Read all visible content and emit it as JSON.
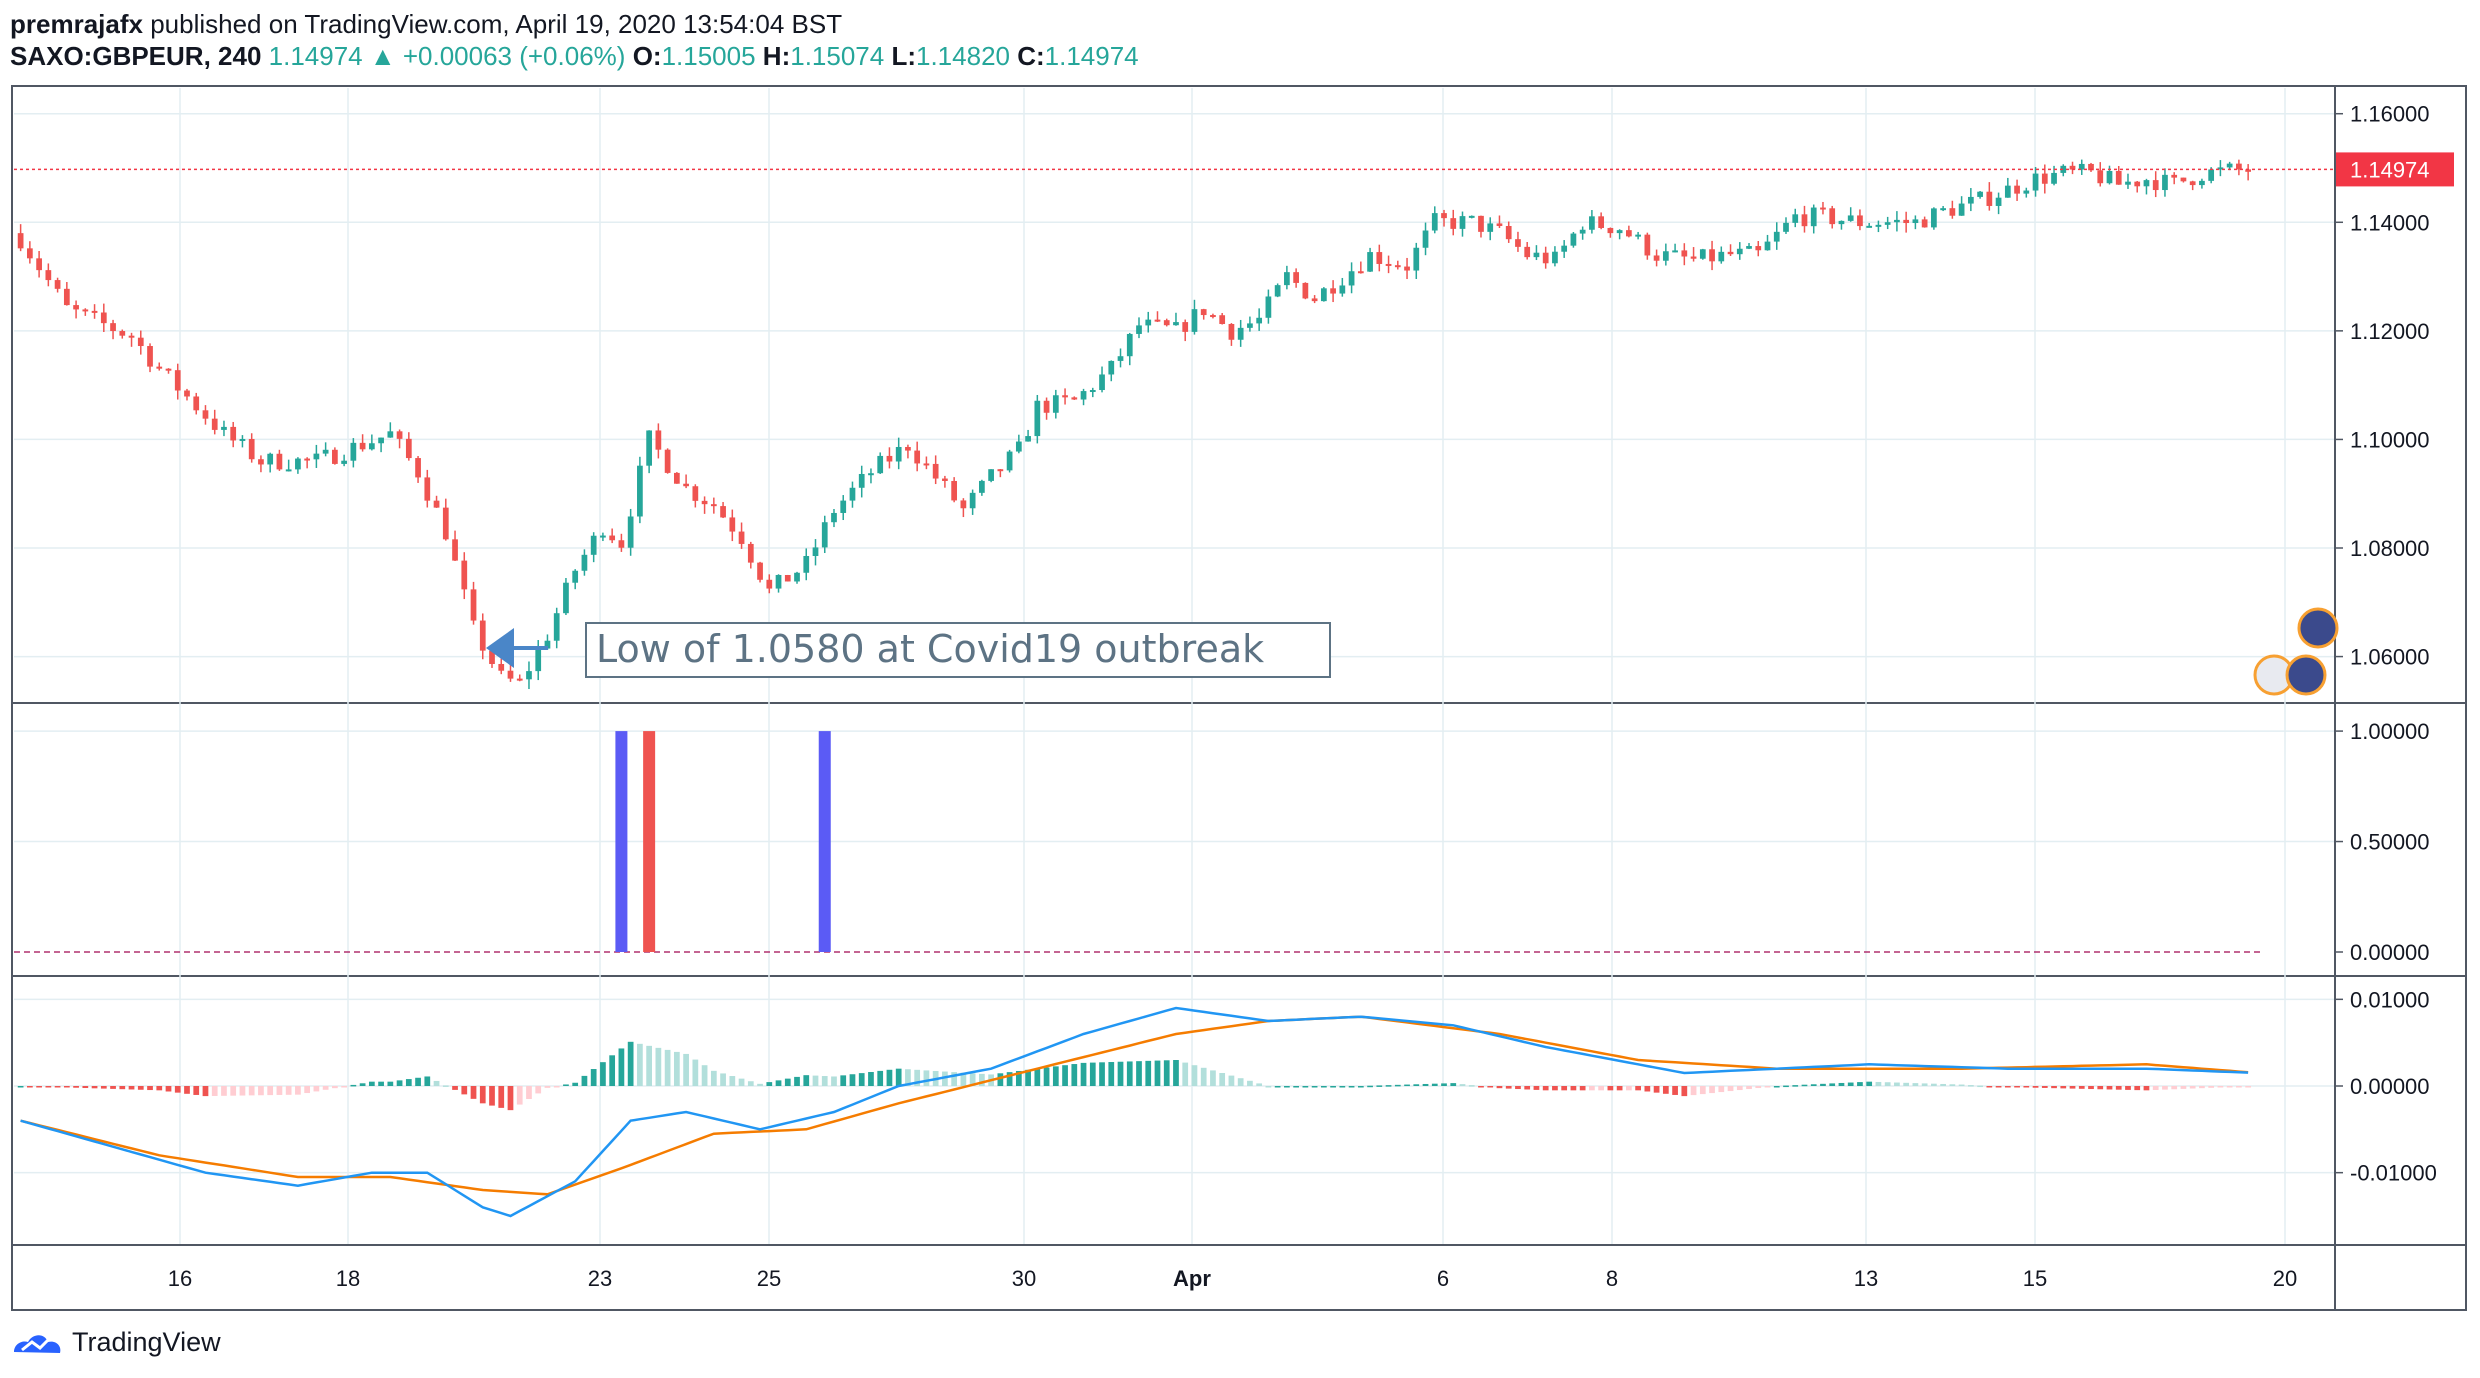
{
  "header": {
    "author": "premrajafx",
    "published_text": "published on TradingView.com, April 19, 2020 13:54:04 BST",
    "symbol": "SAXO:GBPEUR, 240",
    "last_price": "1.14974",
    "up_arrow": "▲",
    "change": "+0.00063 (+0.06%)",
    "o_label": "O:",
    "o_value": "1.15005",
    "h_label": "H:",
    "h_value": "1.15074",
    "l_label": "L:",
    "l_value": "1.14820",
    "c_label": "C:",
    "c_value": "1.14974"
  },
  "footer": {
    "brand": "TradingView"
  },
  "colors": {
    "up": "#26a69a",
    "down": "#ef5350",
    "grid": "#e3eef2",
    "price_line": "#f23645",
    "macd_line": "#2196f3",
    "signal_line": "#f57c00",
    "hist_up_strong": "#26a69a",
    "hist_up_weak": "#b2dfdb",
    "hist_down_strong": "#ef5350",
    "hist_down_weak": "#ffcdd2",
    "bar_blue": "#5b5bf5",
    "bar_red": "#ef5350",
    "annotation": "#5d7384",
    "arrow": "#4a86c8"
  },
  "chart_data": [
    {
      "type": "candlestick",
      "symbol": "SAXO:GBPEUR",
      "interval": "240",
      "ylim": [
        1.052,
        1.164
      ],
      "y_ticks": [
        "1.16000",
        "1.14000",
        "1.12000",
        "1.10000",
        "1.08000",
        "1.06000"
      ],
      "x_ticks": [
        "16",
        "18",
        "23",
        "25",
        "30",
        "Apr",
        "6",
        "8",
        "13",
        "15",
        "20"
      ],
      "current_price_label": "1.14974",
      "annotation": "Low of 1.0580 at Covid19 outbreak",
      "close_path": [
        [
          0,
          1.137
        ],
        [
          5,
          1.124
        ],
        [
          12,
          1.119
        ],
        [
          15,
          1.113
        ],
        [
          22,
          1.101
        ],
        [
          26,
          1.096
        ],
        [
          32,
          1.096
        ],
        [
          40,
          1.101
        ],
        [
          43,
          1.094
        ],
        [
          46,
          1.083
        ],
        [
          49,
          1.065
        ],
        [
          52,
          1.056
        ],
        [
          54,
          1.055
        ],
        [
          57,
          1.064
        ],
        [
          60,
          1.076
        ],
        [
          63,
          1.084
        ],
        [
          65,
          1.081
        ],
        [
          68,
          1.1
        ],
        [
          72,
          1.091
        ],
        [
          75,
          1.088
        ],
        [
          78,
          1.082
        ],
        [
          81,
          1.072
        ],
        [
          85,
          1.077
        ],
        [
          88,
          1.087
        ],
        [
          92,
          1.094
        ],
        [
          96,
          1.099
        ],
        [
          99,
          1.093
        ],
        [
          102,
          1.087
        ],
        [
          105,
          1.093
        ],
        [
          108,
          1.098
        ],
        [
          110,
          1.106
        ],
        [
          114,
          1.107
        ],
        [
          118,
          1.113
        ],
        [
          121,
          1.121
        ],
        [
          125,
          1.12
        ],
        [
          128,
          1.124
        ],
        [
          131,
          1.12
        ],
        [
          134,
          1.122
        ],
        [
          137,
          1.13
        ],
        [
          140,
          1.126
        ],
        [
          143,
          1.13
        ],
        [
          146,
          1.134
        ],
        [
          150,
          1.132
        ],
        [
          153,
          1.14
        ],
        [
          157,
          1.14
        ],
        [
          160,
          1.138
        ],
        [
          163,
          1.134
        ],
        [
          166,
          1.133
        ],
        [
          169,
          1.14
        ],
        [
          173,
          1.139
        ],
        [
          177,
          1.134
        ],
        [
          181,
          1.133
        ],
        [
          185,
          1.134
        ],
        [
          188,
          1.134
        ],
        [
          192,
          1.141
        ],
        [
          195,
          1.141
        ],
        [
          199,
          1.14
        ],
        [
          202,
          1.14
        ],
        [
          205,
          1.14
        ],
        [
          208,
          1.142
        ],
        [
          212,
          1.144
        ],
        [
          215,
          1.146
        ],
        [
          218,
          1.148
        ],
        [
          221,
          1.149
        ],
        [
          224,
          1.149
        ],
        [
          227,
          1.147
        ],
        [
          230,
          1.148
        ],
        [
          233,
          1.147
        ],
        [
          236,
          1.149
        ],
        [
          239,
          1.1495
        ],
        [
          242,
          1.1497
        ]
      ]
    },
    {
      "type": "bar",
      "name": "signal-bars",
      "ylim": [
        0,
        1.1
      ],
      "y_ticks": [
        "1.00000",
        "0.50000",
        "0.00000"
      ],
      "bars": [
        {
          "index": 65,
          "value": 1.0,
          "color": "#5b5bf5"
        },
        {
          "index": 68,
          "value": 1.0,
          "color": "#ef5350"
        },
        {
          "index": 87,
          "value": 1.0,
          "color": "#5b5bf5"
        }
      ]
    },
    {
      "type": "line",
      "name": "macd",
      "ylim": [
        -0.018,
        0.012
      ],
      "y_ticks": [
        "0.01000",
        "0.00000",
        "-0.01000"
      ],
      "macd_path": [
        [
          0,
          -0.004
        ],
        [
          10,
          -0.007
        ],
        [
          20,
          -0.01
        ],
        [
          30,
          -0.0115
        ],
        [
          38,
          -0.01
        ],
        [
          44,
          -0.01
        ],
        [
          50,
          -0.014
        ],
        [
          53,
          -0.015
        ],
        [
          60,
          -0.011
        ],
        [
          66,
          -0.004
        ],
        [
          72,
          -0.003
        ],
        [
          80,
          -0.005
        ],
        [
          88,
          -0.003
        ],
        [
          95,
          0.0
        ],
        [
          105,
          0.002
        ],
        [
          115,
          0.006
        ],
        [
          125,
          0.009
        ],
        [
          135,
          0.0075
        ],
        [
          145,
          0.008
        ],
        [
          155,
          0.007
        ],
        [
          165,
          0.0045
        ],
        [
          180,
          0.0015
        ],
        [
          200,
          0.0025
        ],
        [
          215,
          0.002
        ],
        [
          230,
          0.002
        ],
        [
          242,
          0.0015
        ]
      ],
      "signal_path": [
        [
          0,
          -0.004
        ],
        [
          15,
          -0.008
        ],
        [
          30,
          -0.0105
        ],
        [
          40,
          -0.0105
        ],
        [
          50,
          -0.012
        ],
        [
          57,
          -0.0125
        ],
        [
          65,
          -0.0095
        ],
        [
          75,
          -0.0055
        ],
        [
          85,
          -0.005
        ],
        [
          95,
          -0.002
        ],
        [
          110,
          0.002
        ],
        [
          125,
          0.006
        ],
        [
          135,
          0.0075
        ],
        [
          145,
          0.008
        ],
        [
          160,
          0.006
        ],
        [
          175,
          0.003
        ],
        [
          190,
          0.002
        ],
        [
          210,
          0.002
        ],
        [
          230,
          0.0025
        ],
        [
          242,
          0.0015
        ]
      ]
    }
  ]
}
